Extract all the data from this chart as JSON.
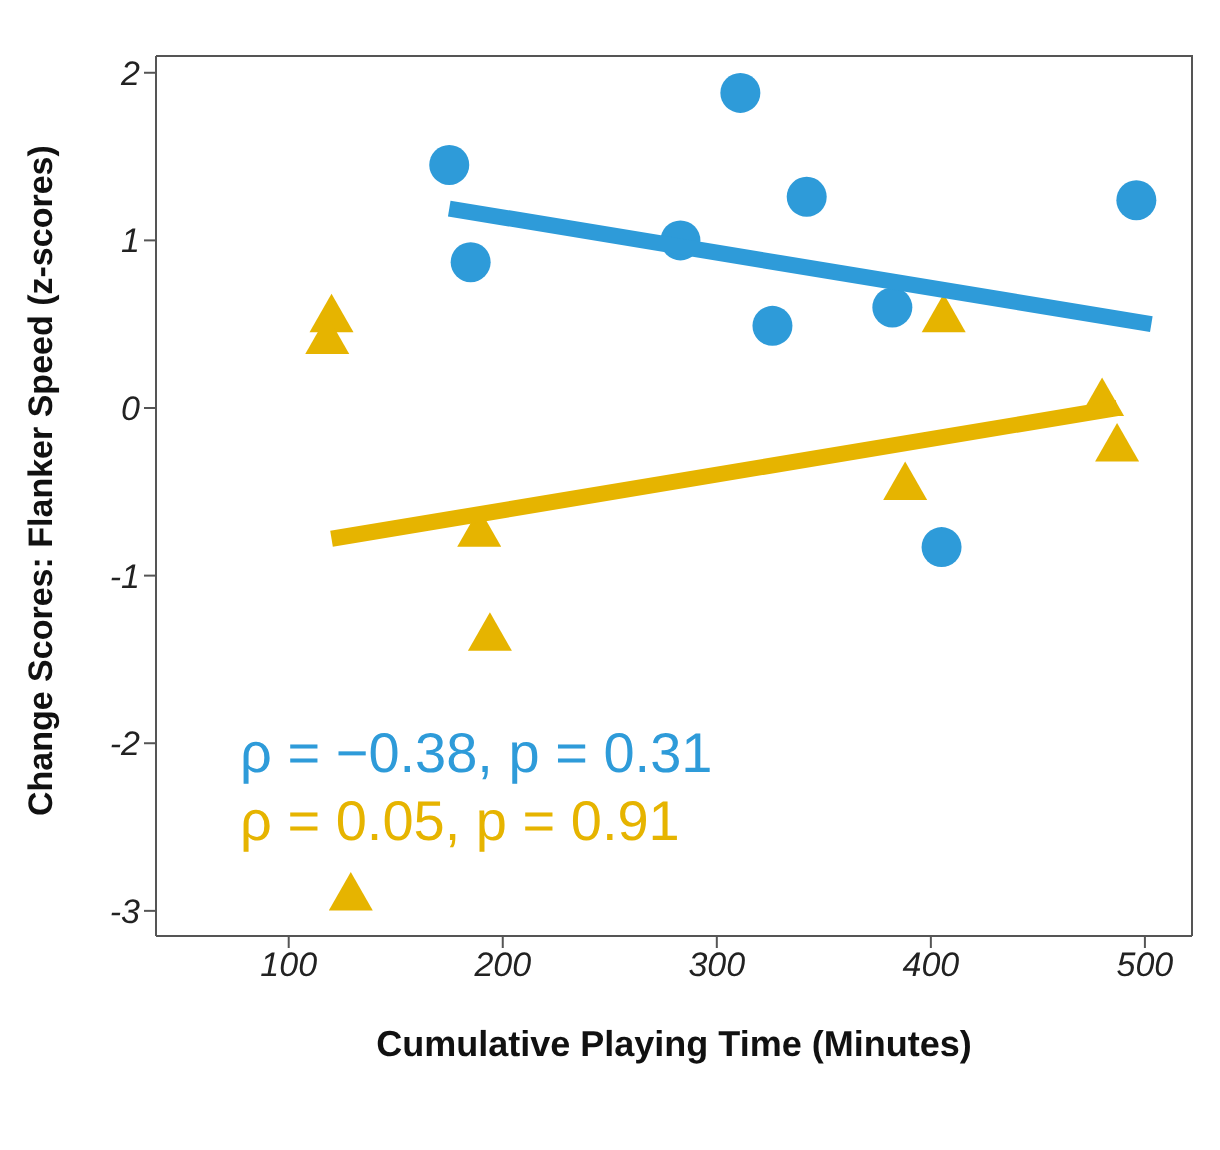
{
  "chart_data": {
    "type": "scatter",
    "xlabel": "Cumulative Playing Time (Minutes)",
    "ylabel": "Change Scores: Flanker Speed (z-scores)",
    "xlim": [
      38,
      522
    ],
    "xticks": [
      100,
      200,
      300,
      400,
      500
    ],
    "ylim": [
      -3.15,
      2.1
    ],
    "yticks": [
      -3,
      -2,
      -1,
      0,
      1,
      2
    ],
    "grid": false,
    "series": [
      {
        "color": "#2e9bd9",
        "marker": "circle",
        "x": [
          175,
          185,
          283,
          311,
          342,
          326,
          382,
          405,
          496
        ],
        "values": [
          1.45,
          0.87,
          1.0,
          1.88,
          1.26,
          0.49,
          0.6,
          -0.83,
          1.24
        ]
      },
      {
        "color": "#e6b400",
        "marker": "triangle",
        "x": [
          120,
          118,
          406,
          480,
          487,
          388,
          189,
          194,
          129
        ],
        "values": [
          0.55,
          0.42,
          0.55,
          0.05,
          -0.22,
          -0.45,
          -0.73,
          -1.35,
          -2.9
        ]
      },
      {
        "type": "line",
        "color": "#2e9bd9",
        "x": [
          175,
          503
        ],
        "values": [
          1.19,
          0.5
        ]
      },
      {
        "type": "line",
        "color": "#e6b400",
        "x": [
          120,
          487
        ],
        "values": [
          -0.78,
          0.0
        ]
      }
    ],
    "annotations": [
      "ρ = −0.38, p = 0.31",
      "ρ = 0.05, p = 0.91"
    ]
  }
}
